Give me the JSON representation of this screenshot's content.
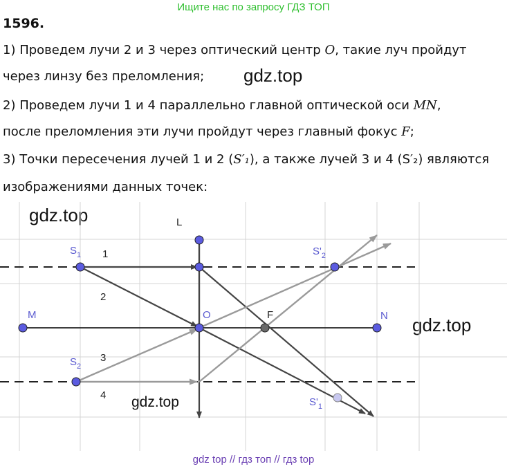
{
  "banner": "Ищите нас по запросу ГДЗ ТОП",
  "task_number": "1596.",
  "lines": [
    {
      "pre": "1) Проведем лучи 2 и 3 через оптический центр ",
      "sym": "O",
      "post": ", такие луч пройдут"
    },
    {
      "pre": "через линзу без преломления;",
      "sym": "",
      "post": ""
    },
    {
      "pre": "2) Проведем лучи 1 и 4 параллельно главной оптической оси ",
      "sym": "MN",
      "post": ","
    },
    {
      "pre": "после преломления эти лучи пройдут через главный фокус ",
      "sym": "F",
      "post": ";"
    },
    {
      "pre": "3) Точки пересечения лучей 1 и 2 (",
      "sym": "S′₁",
      "post": "), а также лучей 3 и 4 (S′₂) являются"
    },
    {
      "pre": "изображениями данных точек:",
      "sym": "",
      "post": ""
    }
  ],
  "watermarks": [
    "gdz.top",
    "gdz.top",
    "gdz.top",
    "gdz.top"
  ],
  "diagram": {
    "labels": {
      "L": "L",
      "S1": "S",
      "S1_sub": "1",
      "S2": "S",
      "S2_sub": "2",
      "M": "M",
      "N": "N",
      "O": "O",
      "F": "F",
      "S1p": "S'",
      "S1p_sub": "1",
      "S2p": "S'",
      "S2p_sub": "2",
      "ray1": "1",
      "ray2": "2",
      "ray3": "3",
      "ray4": "4"
    },
    "colors": {
      "point": "#5b5be0",
      "focus": "#6a6a6a",
      "ray_dark": "#444444",
      "ray_light": "#9a9a9a",
      "grid": "#d4d4d4"
    }
  },
  "footer": "gdz top  //  гдз топ  //  гдз top"
}
